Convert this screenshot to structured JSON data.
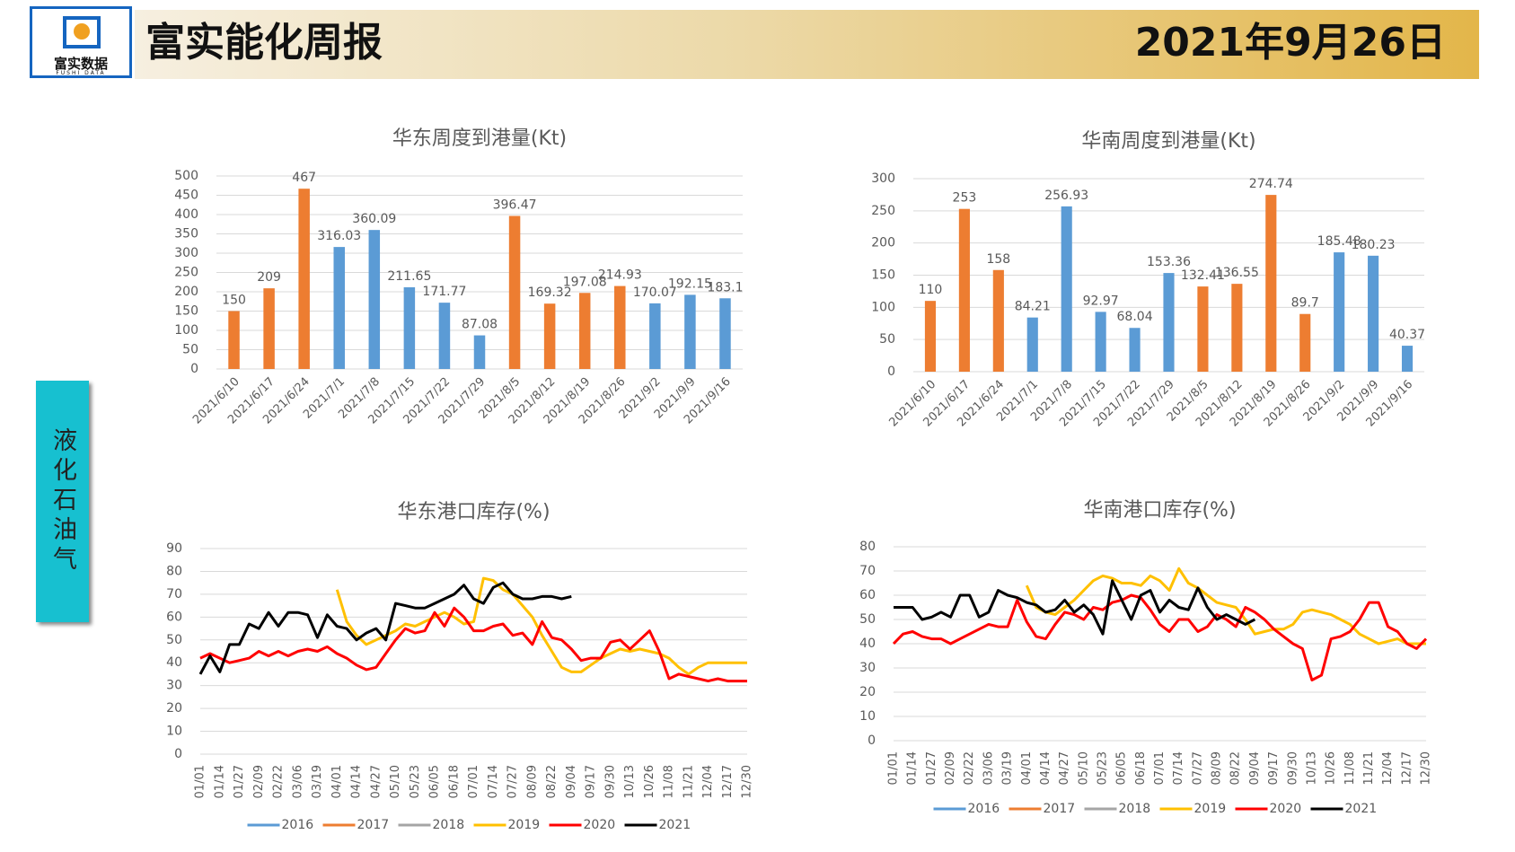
{
  "header": {
    "title": "富实能化周报",
    "date": "2021年9月26日",
    "logo": "富实数据",
    "logo_sub": "FUSHI DATA"
  },
  "side_label": "液化石油气",
  "chart_data": [
    {
      "type": "bar",
      "title": "华东周度到港量(Kt)",
      "categories": [
        "2021/6/10",
        "2021/6/17",
        "2021/6/24",
        "2021/7/1",
        "2021/7/8",
        "2021/7/15",
        "2021/7/22",
        "2021/7/29",
        "2021/8/5",
        "2021/8/12",
        "2021/8/19",
        "2021/8/26",
        "2021/9/2",
        "2021/9/9",
        "2021/9/16"
      ],
      "values": [
        150,
        209,
        467,
        316.03,
        360.09,
        211.65,
        171.77,
        87.08,
        396.47,
        169.32,
        197.08,
        214.93,
        170.07,
        192.15,
        183.1
      ],
      "colors": [
        "#ed7d31",
        "#ed7d31",
        "#ed7d31",
        "#5b9bd5",
        "#5b9bd5",
        "#5b9bd5",
        "#5b9bd5",
        "#5b9bd5",
        "#ed7d31",
        "#ed7d31",
        "#ed7d31",
        "#ed7d31",
        "#5b9bd5",
        "#5b9bd5",
        "#5b9bd5"
      ],
      "ylim": [
        0,
        500
      ],
      "yticks": [
        0,
        50,
        100,
        150,
        200,
        250,
        300,
        350,
        400,
        450,
        500
      ],
      "grid": true
    },
    {
      "type": "bar",
      "title": "华南周度到港量(Kt)",
      "categories": [
        "2021/6/10",
        "2021/6/17",
        "2021/6/24",
        "2021/7/1",
        "2021/7/8",
        "2021/7/15",
        "2021/7/22",
        "2021/7/29",
        "2021/8/5",
        "2021/8/12",
        "2021/8/19",
        "2021/8/26",
        "2021/9/2",
        "2021/9/9",
        "2021/9/16"
      ],
      "values": [
        110,
        253,
        158,
        84.21,
        256.93,
        92.97,
        68.04,
        153.36,
        132.41,
        136.55,
        274.74,
        89.7,
        185.48,
        180.23,
        40.37
      ],
      "colors": [
        "#ed7d31",
        "#ed7d31",
        "#ed7d31",
        "#5b9bd5",
        "#5b9bd5",
        "#5b9bd5",
        "#5b9bd5",
        "#5b9bd5",
        "#ed7d31",
        "#ed7d31",
        "#ed7d31",
        "#ed7d31",
        "#5b9bd5",
        "#5b9bd5",
        "#5b9bd5"
      ],
      "ylim": [
        0,
        300
      ],
      "yticks": [
        0,
        50,
        100,
        150,
        200,
        250,
        300
      ],
      "grid": true
    },
    {
      "type": "line",
      "title": "华东港口库存(%)",
      "categories": [
        "01/01",
        null,
        "01/14",
        null,
        "01/27",
        null,
        "02/09",
        null,
        "02/22",
        null,
        "03/06",
        null,
        "03/19",
        null,
        "04/01",
        null,
        "04/14",
        null,
        "04/27",
        null,
        "05/10",
        null,
        "05/23",
        null,
        "06/05",
        null,
        "06/18",
        null,
        "07/01",
        null,
        "07/14",
        null,
        "07/27",
        null,
        "08/09",
        null,
        "08/22",
        null,
        "09/04",
        null,
        "09/17",
        null,
        "09/30",
        null,
        "10/13",
        null,
        "10/26",
        null,
        "11/08",
        null,
        "11/21",
        null,
        "12/04",
        null,
        "12/17",
        null,
        "12/30"
      ],
      "ylim": [
        0,
        90
      ],
      "yticks": [
        0,
        10,
        20,
        30,
        40,
        50,
        60,
        70,
        80,
        90
      ],
      "grid": true,
      "series": [
        {
          "name": "2016",
          "color": "#5b9bd5",
          "values": [
            null,
            null,
            null,
            null,
            null,
            null,
            null,
            null,
            null,
            null,
            null,
            null,
            null,
            null,
            null,
            null,
            null,
            null,
            null,
            null,
            null,
            null,
            null,
            null,
            null,
            null,
            null,
            null,
            null,
            null,
            null,
            null,
            null,
            null,
            null,
            null,
            null,
            null,
            null,
            null,
            null,
            null,
            null,
            null,
            null,
            null,
            null,
            null,
            null,
            null,
            null,
            null,
            null,
            null,
            null,
            null,
            null
          ]
        },
        {
          "name": "2017",
          "color": "#ed7d31",
          "values": [
            null,
            null,
            null,
            null,
            null,
            null,
            null,
            null,
            null,
            null,
            null,
            null,
            null,
            null,
            null,
            null,
            null,
            null,
            null,
            null,
            null,
            null,
            null,
            null,
            null,
            null,
            null,
            null,
            null,
            null,
            null,
            null,
            null,
            null,
            null,
            null,
            null,
            null,
            null,
            null,
            null,
            null,
            null,
            null,
            null,
            null,
            null,
            null,
            null,
            null,
            null,
            null,
            null,
            null,
            null,
            null,
            null
          ]
        },
        {
          "name": "2018",
          "color": "#a5a5a5",
          "values": [
            null,
            null,
            null,
            null,
            null,
            null,
            null,
            null,
            null,
            null,
            null,
            null,
            null,
            null,
            null,
            null,
            null,
            null,
            null,
            null,
            null,
            null,
            null,
            null,
            null,
            null,
            null,
            null,
            null,
            null,
            null,
            null,
            null,
            null,
            null,
            null,
            null,
            null,
            null,
            null,
            null,
            null,
            null,
            null,
            null,
            null,
            null,
            null,
            null,
            null,
            null,
            null,
            null,
            null,
            null,
            null,
            null
          ]
        },
        {
          "name": "2019",
          "color": "#ffc000",
          "values": [
            null,
            null,
            null,
            null,
            null,
            null,
            null,
            null,
            null,
            null,
            null,
            null,
            null,
            null,
            72,
            58,
            52,
            48,
            50,
            52,
            54,
            57,
            56,
            58,
            60,
            62,
            60,
            57,
            58,
            77,
            76,
            72,
            70,
            65,
            60,
            52,
            45,
            38,
            36,
            36,
            39,
            42,
            44,
            46,
            45,
            46,
            45,
            44,
            42,
            38,
            35,
            38,
            40,
            40,
            40,
            40,
            40
          ]
        },
        {
          "name": "2020",
          "color": "#ff0000",
          "values": [
            42,
            44,
            42,
            40,
            41,
            42,
            45,
            43,
            45,
            43,
            45,
            46,
            45,
            47,
            44,
            42,
            39,
            37,
            38,
            44,
            50,
            55,
            53,
            54,
            62,
            56,
            64,
            60,
            54,
            54,
            56,
            57,
            52,
            53,
            48,
            58,
            51,
            50,
            46,
            41,
            42,
            42,
            49,
            50,
            46,
            50,
            54,
            45,
            33,
            35,
            34,
            33,
            32,
            33,
            32,
            32,
            32
          ]
        },
        {
          "name": "2021",
          "color": "#000000",
          "values": [
            35,
            43,
            36,
            48,
            48,
            57,
            55,
            62,
            56,
            62,
            62,
            61,
            51,
            61,
            56,
            55,
            50,
            53,
            55,
            50,
            66,
            65,
            64,
            64,
            66,
            68,
            70,
            74,
            68,
            66,
            73,
            75,
            70,
            68,
            68,
            69,
            69,
            68,
            69,
            null,
            null,
            null,
            null,
            null,
            null,
            null,
            null,
            null,
            null,
            null,
            null,
            null,
            null,
            null,
            null,
            null,
            null
          ]
        }
      ]
    },
    {
      "type": "line",
      "title": "华南港口库存(%)",
      "categories": [
        "01/01",
        null,
        "01/14",
        null,
        "01/27",
        null,
        "02/09",
        null,
        "02/22",
        null,
        "03/06",
        null,
        "03/19",
        null,
        "04/01",
        null,
        "04/14",
        null,
        "04/27",
        null,
        "05/10",
        null,
        "05/23",
        null,
        "06/05",
        null,
        "06/18",
        null,
        "07/01",
        null,
        "07/14",
        null,
        "07/27",
        null,
        "08/09",
        null,
        "08/22",
        null,
        "09/04",
        null,
        "09/17",
        null,
        "09/30",
        null,
        "10/13",
        null,
        "10/26",
        null,
        "11/08",
        null,
        "11/21",
        null,
        "12/04",
        null,
        "12/17",
        null,
        "12/30"
      ],
      "ylim": [
        0,
        80
      ],
      "yticks": [
        0,
        10,
        20,
        30,
        40,
        50,
        60,
        70,
        80
      ],
      "grid": true,
      "series": [
        {
          "name": "2016",
          "color": "#5b9bd5",
          "values": [
            null,
            null,
            null,
            null,
            null,
            null,
            null,
            null,
            null,
            null,
            null,
            null,
            null,
            null,
            null,
            null,
            null,
            null,
            null,
            null,
            null,
            null,
            null,
            null,
            null,
            null,
            null,
            null,
            null,
            null,
            null,
            null,
            null,
            null,
            null,
            null,
            null,
            null,
            null,
            null,
            null,
            null,
            null,
            null,
            null,
            null,
            null,
            null,
            null,
            null,
            null,
            null,
            null,
            null,
            null,
            null,
            null
          ]
        },
        {
          "name": "2017",
          "color": "#ed7d31",
          "values": [
            null,
            null,
            null,
            null,
            null,
            null,
            null,
            null,
            null,
            null,
            null,
            null,
            null,
            null,
            null,
            null,
            null,
            null,
            null,
            null,
            null,
            null,
            null,
            null,
            null,
            null,
            null,
            null,
            null,
            null,
            null,
            null,
            null,
            null,
            null,
            null,
            null,
            null,
            null,
            null,
            null,
            null,
            null,
            null,
            null,
            null,
            null,
            null,
            null,
            null,
            null,
            null,
            null,
            null,
            null,
            null,
            null
          ]
        },
        {
          "name": "2018",
          "color": "#a5a5a5",
          "values": [
            null,
            null,
            null,
            null,
            null,
            null,
            null,
            null,
            null,
            null,
            null,
            null,
            null,
            null,
            null,
            null,
            null,
            null,
            null,
            null,
            null,
            null,
            null,
            null,
            null,
            null,
            null,
            null,
            null,
            null,
            null,
            null,
            null,
            null,
            null,
            null,
            null,
            null,
            null,
            null,
            null,
            null,
            null,
            null,
            null,
            null,
            null,
            null,
            null,
            null,
            null,
            null,
            null,
            null,
            null,
            null,
            null
          ]
        },
        {
          "name": "2019",
          "color": "#ffc000",
          "values": [
            null,
            null,
            null,
            null,
            null,
            null,
            null,
            null,
            null,
            null,
            null,
            null,
            null,
            null,
            64,
            55,
            53,
            52,
            55,
            58,
            62,
            66,
            68,
            67,
            65,
            65,
            64,
            68,
            66,
            62,
            71,
            65,
            63,
            60,
            57,
            56,
            55,
            50,
            44,
            45,
            46,
            46,
            48,
            53,
            54,
            53,
            52,
            50,
            48,
            44,
            42,
            40,
            41,
            42,
            40,
            40,
            40
          ]
        },
        {
          "name": "2020",
          "color": "#ff0000",
          "values": [
            40,
            44,
            45,
            43,
            42,
            42,
            40,
            42,
            44,
            46,
            48,
            47,
            47,
            58,
            49,
            43,
            42,
            48,
            53,
            52,
            50,
            55,
            54,
            57,
            58,
            60,
            59,
            54,
            48,
            45,
            50,
            50,
            45,
            47,
            52,
            50,
            47,
            55,
            53,
            50,
            46,
            43,
            40,
            38,
            25,
            27,
            42,
            43,
            45,
            50,
            57,
            57,
            47,
            45,
            40,
            38,
            42
          ]
        },
        {
          "name": "2021",
          "color": "#000000",
          "values": [
            55,
            55,
            55,
            50,
            51,
            53,
            51,
            60,
            60,
            51,
            53,
            62,
            60,
            59,
            57,
            56,
            53,
            54,
            58,
            53,
            56,
            52,
            44,
            66,
            58,
            50,
            60,
            62,
            53,
            58,
            55,
            54,
            63,
            55,
            50,
            52,
            50,
            48,
            50,
            null,
            null,
            null,
            null,
            null,
            null,
            null,
            null,
            null,
            null,
            null,
            null,
            null,
            null,
            null,
            null,
            null,
            null
          ]
        }
      ]
    }
  ]
}
